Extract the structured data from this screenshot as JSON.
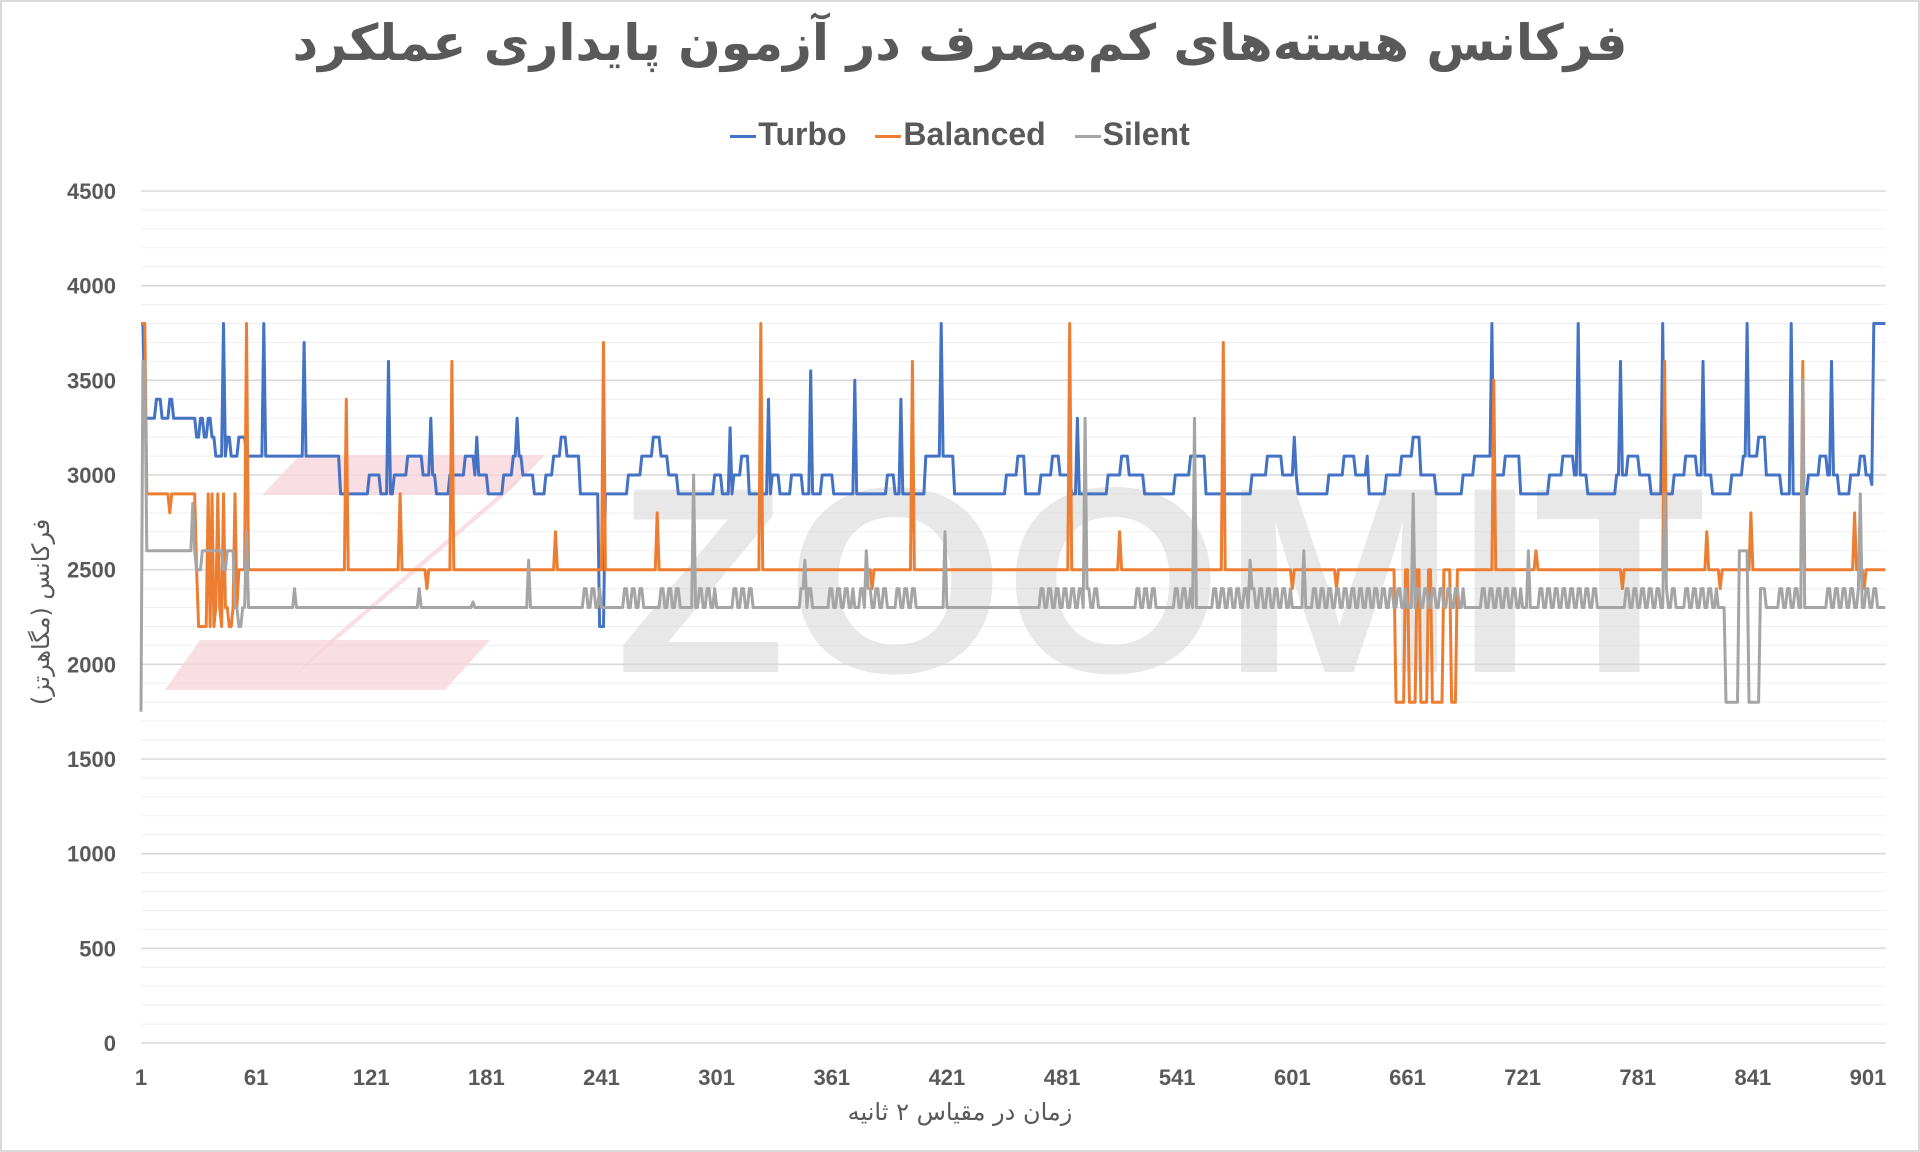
{
  "chart_data": {
    "type": "line",
    "title": "فرکانس هسته‌های کم‌مصرف در آزمون پایداری عملکرد",
    "xlabel": "زمان در مقیاس ۲ ثانیه",
    "ylabel": "فرکانس (مگاهرتز)",
    "ylim": [
      0,
      4500
    ],
    "xlim": [
      1,
      910
    ],
    "yticks": [
      "0",
      "500",
      "1000",
      "1500",
      "2000",
      "2500",
      "3000",
      "3500",
      "4000",
      "4500"
    ],
    "xticks": [
      "1",
      "61",
      "121",
      "181",
      "241",
      "301",
      "361",
      "421",
      "481",
      "541",
      "601",
      "661",
      "721",
      "781",
      "841",
      "901"
    ],
    "grid": true,
    "legend_position": "top",
    "watermark": "ZOOMIT",
    "series": [
      {
        "name": "Turbo",
        "color": "#4472C4",
        "steps": [
          [
            1,
            3800
          ],
          [
            3,
            3300
          ],
          [
            9,
            3400
          ],
          [
            12,
            3300
          ],
          [
            16,
            3400
          ],
          [
            18,
            3300
          ],
          [
            30,
            3200
          ],
          [
            32,
            3300
          ],
          [
            34,
            3200
          ],
          [
            36,
            3300
          ],
          [
            38,
            3200
          ],
          [
            40,
            3100
          ],
          [
            46,
            3200
          ],
          [
            48,
            3100
          ],
          [
            52,
            3200
          ],
          [
            56,
            3100
          ],
          [
            105,
            2900
          ],
          [
            120,
            3000
          ],
          [
            126,
            2900
          ],
          [
            133,
            3000
          ],
          [
            140,
            3100
          ],
          [
            148,
            3000
          ],
          [
            155,
            2900
          ],
          [
            162,
            3000
          ],
          [
            170,
            3100
          ],
          [
            175,
            3000
          ],
          [
            182,
            2900
          ],
          [
            190,
            3000
          ],
          [
            195,
            3100
          ],
          [
            200,
            3000
          ],
          [
            206,
            2900
          ],
          [
            212,
            3000
          ],
          [
            216,
            3100
          ],
          [
            220,
            3200
          ],
          [
            223,
            3100
          ],
          [
            230,
            2900
          ],
          [
            240,
            2200
          ],
          [
            243,
            2900
          ],
          [
            255,
            3000
          ],
          [
            262,
            3100
          ],
          [
            268,
            3200
          ],
          [
            272,
            3100
          ],
          [
            276,
            3000
          ],
          [
            281,
            2900
          ],
          [
            300,
            3000
          ],
          [
            304,
            2900
          ],
          [
            310,
            3000
          ],
          [
            314,
            3100
          ],
          [
            318,
            2900
          ],
          [
            330,
            3000
          ],
          [
            334,
            2900
          ],
          [
            340,
            3000
          ],
          [
            346,
            2900
          ],
          [
            356,
            3000
          ],
          [
            362,
            2900
          ],
          [
            390,
            3000
          ],
          [
            394,
            2900
          ],
          [
            410,
            3100
          ],
          [
            425,
            2900
          ],
          [
            452,
            3000
          ],
          [
            458,
            3100
          ],
          [
            462,
            2900
          ],
          [
            470,
            3000
          ],
          [
            476,
            3100
          ],
          [
            480,
            3000
          ],
          [
            486,
            2900
          ],
          [
            505,
            3000
          ],
          [
            512,
            3100
          ],
          [
            516,
            3000
          ],
          [
            524,
            2900
          ],
          [
            540,
            3000
          ],
          [
            548,
            3100
          ],
          [
            556,
            2900
          ],
          [
            580,
            3000
          ],
          [
            588,
            3100
          ],
          [
            596,
            3000
          ],
          [
            604,
            2900
          ],
          [
            620,
            3000
          ],
          [
            628,
            3100
          ],
          [
            634,
            3000
          ],
          [
            640,
            2900
          ],
          [
            650,
            3000
          ],
          [
            658,
            3100
          ],
          [
            664,
            3200
          ],
          [
            668,
            3000
          ],
          [
            676,
            2900
          ],
          [
            690,
            3000
          ],
          [
            696,
            3100
          ],
          [
            705,
            3000
          ],
          [
            712,
            3100
          ],
          [
            720,
            2900
          ],
          [
            735,
            3000
          ],
          [
            742,
            3100
          ],
          [
            748,
            3000
          ],
          [
            755,
            2900
          ],
          [
            770,
            3000
          ],
          [
            776,
            3100
          ],
          [
            782,
            3000
          ],
          [
            788,
            2900
          ],
          [
            800,
            3000
          ],
          [
            806,
            3100
          ],
          [
            812,
            3000
          ],
          [
            820,
            2900
          ],
          [
            830,
            3000
          ],
          [
            836,
            3100
          ],
          [
            844,
            3200
          ],
          [
            848,
            3000
          ],
          [
            856,
            2900
          ],
          [
            870,
            3000
          ],
          [
            876,
            3100
          ],
          [
            880,
            3000
          ],
          [
            886,
            2900
          ],
          [
            892,
            3000
          ],
          [
            897,
            3100
          ],
          [
            900,
            3000
          ],
          [
            903,
            2950
          ],
          [
            904,
            3800
          ]
        ],
        "toggles": [],
        "spikes": [
          [
            44,
            3800
          ],
          [
            65,
            3800
          ],
          [
            86,
            3700
          ],
          [
            130,
            3600
          ],
          [
            152,
            3300
          ],
          [
            176,
            3200
          ],
          [
            197,
            3300
          ],
          [
            308,
            3250
          ],
          [
            328,
            3400
          ],
          [
            350,
            3550
          ],
          [
            373,
            3500
          ],
          [
            397,
            3400
          ],
          [
            418,
            3800
          ],
          [
            489,
            3300
          ],
          [
            602,
            3200
          ],
          [
            640,
            3100
          ],
          [
            705,
            3800
          ],
          [
            750,
            3800
          ],
          [
            772,
            3600
          ],
          [
            794,
            3800
          ],
          [
            815,
            3600
          ],
          [
            838,
            3800
          ],
          [
            861,
            3800
          ],
          [
            882,
            3600
          ]
        ]
      },
      {
        "name": "Balanced",
        "color": "#ED7D31",
        "steps": [
          [
            1,
            3800
          ],
          [
            4,
            2900
          ],
          [
            30,
            2500
          ],
          [
            31,
            2200
          ],
          [
            36,
            2900
          ],
          [
            37,
            2200
          ],
          [
            40,
            2300
          ],
          [
            43,
            2200
          ],
          [
            45,
            2300
          ],
          [
            47,
            2200
          ],
          [
            49,
            2300
          ],
          [
            52,
            2500
          ],
          [
            56,
            2500
          ],
          [
            655,
            1800
          ],
          [
            660,
            2500
          ],
          [
            662,
            1800
          ],
          [
            666,
            2500
          ],
          [
            668,
            1800
          ],
          [
            672,
            2500
          ],
          [
            674,
            1800
          ],
          [
            680,
            2500
          ],
          [
            684,
            1800
          ],
          [
            687,
            2500
          ]
        ],
        "toggles": [],
        "spikes": [
          [
            16,
            2800
          ],
          [
            38,
            2900
          ],
          [
            41,
            2900
          ],
          [
            44,
            2900
          ],
          [
            50,
            2900
          ],
          [
            56,
            3800
          ],
          [
            108,
            3400
          ],
          [
            136,
            2900
          ],
          [
            150,
            2400
          ],
          [
            163,
            3600
          ],
          [
            217,
            2700
          ],
          [
            242,
            3700
          ],
          [
            270,
            2800
          ],
          [
            324,
            3800
          ],
          [
            382,
            2400
          ],
          [
            403,
            3600
          ],
          [
            485,
            3800
          ],
          [
            511,
            2700
          ],
          [
            565,
            3700
          ],
          [
            601,
            2400
          ],
          [
            624,
            2400
          ],
          [
            706,
            3500
          ],
          [
            728,
            2600
          ],
          [
            773,
            2400
          ],
          [
            795,
            3600
          ],
          [
            817,
            2700
          ],
          [
            824,
            2400
          ],
          [
            840,
            2800
          ],
          [
            867,
            3600
          ],
          [
            894,
            2800
          ],
          [
            899,
            2400
          ]
        ]
      },
      {
        "name": "Silent",
        "color": "#A5A5A5",
        "steps": [
          [
            1,
            1750
          ],
          [
            2,
            3600
          ],
          [
            4,
            2600
          ],
          [
            30,
            2500
          ],
          [
            33,
            2600
          ],
          [
            44,
            2500
          ],
          [
            46,
            2600
          ],
          [
            50,
            2300
          ],
          [
            52,
            2200
          ],
          [
            54,
            2300
          ],
          [
            58,
            2300
          ],
          [
            827,
            1800
          ],
          [
            834,
            2600
          ],
          [
            839,
            1800
          ],
          [
            845,
            2400
          ],
          [
            848,
            2300
          ]
        ],
        "toggles": [
          [
            232,
            240
          ],
          [
            253,
            262
          ],
          [
            272,
            282
          ],
          [
            292,
            300
          ],
          [
            310,
            320
          ],
          [
            345,
            352
          ],
          [
            360,
            372
          ],
          [
            376,
            390
          ],
          [
            395,
            405
          ],
          [
            470,
            500
          ],
          [
            520,
            530
          ],
          [
            540,
            548
          ],
          [
            560,
            600
          ],
          [
            612,
            660
          ],
          [
            666,
            690
          ],
          [
            700,
            720
          ],
          [
            730,
            760
          ],
          [
            775,
            800
          ],
          [
            806,
            822
          ],
          [
            855,
            866
          ],
          [
            880,
            906
          ]
        ],
        "spikes": [
          [
            28,
            2850
          ],
          [
            56,
            2700
          ],
          [
            81,
            2400
          ],
          [
            146,
            2400
          ],
          [
            174,
            2330
          ],
          [
            203,
            2550
          ],
          [
            289,
            3000
          ],
          [
            347,
            2550
          ],
          [
            379,
            2600
          ],
          [
            420,
            2700
          ],
          [
            493,
            3300
          ],
          [
            550,
            3300
          ],
          [
            579,
            2550
          ],
          [
            607,
            2600
          ],
          [
            664,
            2900
          ],
          [
            724,
            2600
          ],
          [
            795,
            2900
          ],
          [
            867,
            3500
          ],
          [
            897,
            2900
          ]
        ]
      }
    ]
  }
}
